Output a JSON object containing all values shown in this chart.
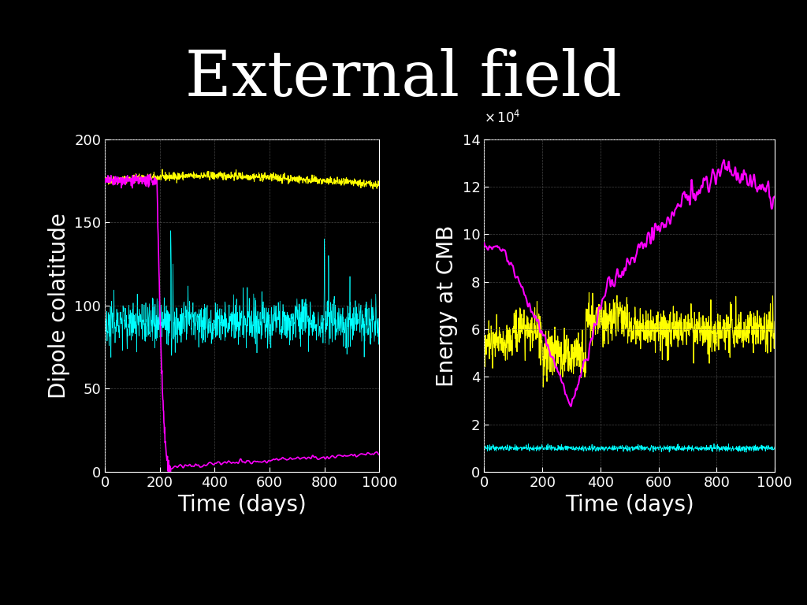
{
  "title": "External field",
  "title_fontsize": 58,
  "title_color": "#ffffff",
  "background_color": "#000000",
  "plot_bg_color": "#000000",
  "axes_edge_color": "#ffffff",
  "tick_color": "#ffffff",
  "label_color": "#ffffff",
  "grid_color": "#555555",
  "left_ylabel": "Dipole colatitude",
  "right_ylabel": "Energy at CMB",
  "xlabel": "Time (days)",
  "xlabel_fontsize": 20,
  "ylabel_fontsize": 20,
  "tick_fontsize": 13,
  "left_ylim": [
    0,
    200
  ],
  "right_ylim": [
    0,
    14
  ],
  "xlim": [
    0,
    1000
  ],
  "left_yticks": [
    0,
    50,
    100,
    150,
    200
  ],
  "right_yticks": [
    0,
    2,
    4,
    6,
    8,
    10,
    12,
    14
  ],
  "xticks": [
    0,
    200,
    400,
    600,
    800,
    1000
  ],
  "colors_left": [
    "#ffff00",
    "#ff00ff",
    "#00ffff"
  ],
  "colors_right": [
    "#ff00ff",
    "#ffff00",
    "#00ffff"
  ],
  "seed": 42,
  "n_points": 1001
}
